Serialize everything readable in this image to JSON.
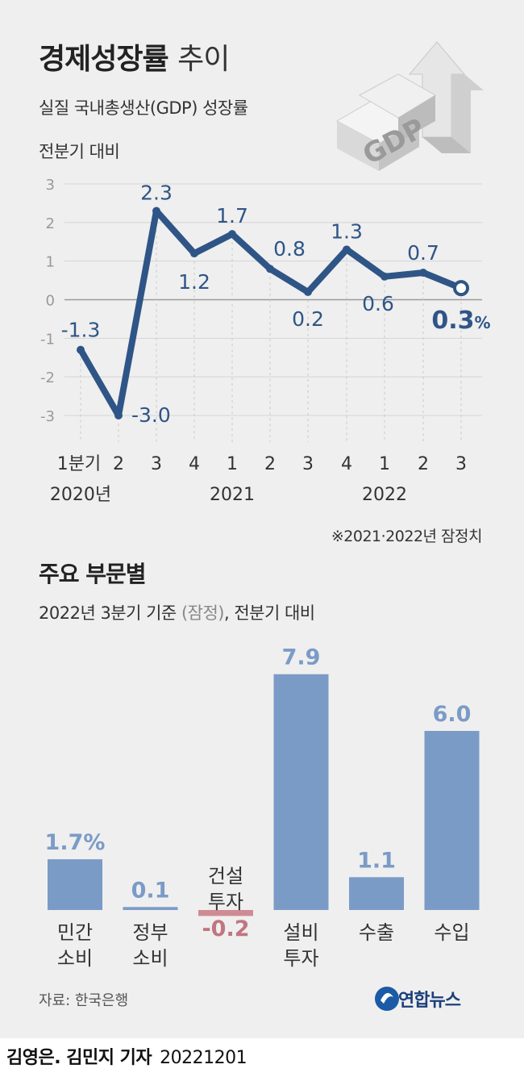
{
  "header": {
    "title_bold": "경제성장률",
    "title_light": "추이",
    "subtitle": "실질 국내총생산(GDP) 성장률",
    "unit_line": "전분기 대비",
    "graphic_label": "GDP"
  },
  "chart_data": [
    {
      "type": "line",
      "title": "경제성장률 추이",
      "subtitle": "실질 국내총생산(GDP) 성장률",
      "unit": "전분기 대비",
      "x_tick_labels": [
        "1분기",
        "2",
        "3",
        "4",
        "1",
        "2",
        "3",
        "4",
        "1",
        "2",
        "3"
      ],
      "year_labels": [
        "2020년",
        "2021",
        "2022"
      ],
      "values": [
        -1.3,
        -3.0,
        2.3,
        1.2,
        1.7,
        0.8,
        0.2,
        1.3,
        0.6,
        0.7,
        0.3
      ],
      "value_labels": [
        "-1.3",
        "-3.0",
        "2.3",
        "1.2",
        "1.7",
        "0.8",
        "0.2",
        "1.3",
        "0.6",
        "0.7",
        "0.3"
      ],
      "last_value_unit": "%",
      "y_ticks": [
        "3",
        "2",
        "1",
        "0",
        "-1",
        "-2",
        "-3"
      ],
      "ylim": [
        -3,
        3
      ],
      "note": "※2021·2022년 잠정치",
      "line_color": "#2f5587",
      "grid": true
    },
    {
      "type": "bar",
      "title": "주요 부문별",
      "subtitle_main": "2022년 3분기 기준",
      "subtitle_paren": "(잠정)",
      "subtitle_tail": ", 전분기 대비",
      "categories": [
        [
          "민간",
          "소비"
        ],
        [
          "정부",
          "소비"
        ],
        [
          "건설",
          "투자"
        ],
        [
          "설비",
          "투자"
        ],
        [
          "수출"
        ],
        [
          "수입"
        ]
      ],
      "values": [
        1.7,
        0.1,
        -0.2,
        7.9,
        1.1,
        6.0
      ],
      "value_labels": [
        "1.7%",
        "0.1",
        "-0.2",
        "7.9",
        "1.1",
        "6.0"
      ],
      "positive_color": "#7b9bc7",
      "negative_color": "#cf8b94",
      "positive_label_color": "#7b9bc7",
      "negative_label_color": "#c07680"
    }
  ],
  "footer": {
    "source": "자료: 한국은행",
    "logo": "연합뉴스",
    "byline": "김영은. 김민지 기자",
    "date": "20221201"
  }
}
